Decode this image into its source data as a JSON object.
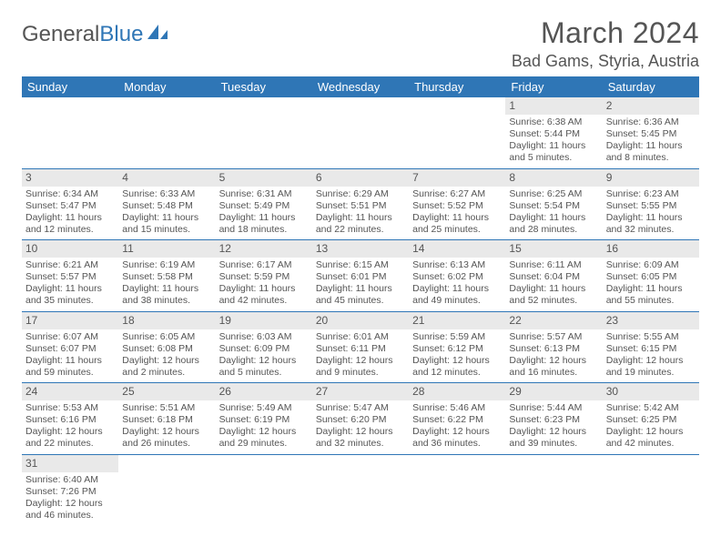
{
  "brand": {
    "word1": "General",
    "word2": "Blue"
  },
  "title": "March 2024",
  "location": "Bad Gams, Styria, Austria",
  "colors": {
    "header_bg": "#2f76b6",
    "header_text": "#ffffff",
    "daynum_bg": "#e9e9e9",
    "text": "#555555",
    "rule": "#2f76b6",
    "page_bg": "#ffffff"
  },
  "typography": {
    "title_fontsize": 32,
    "location_fontsize": 18,
    "dow_fontsize": 13,
    "daynum_fontsize": 12,
    "body_fontsize": 10.5
  },
  "days_of_week": [
    "Sunday",
    "Monday",
    "Tuesday",
    "Wednesday",
    "Thursday",
    "Friday",
    "Saturday"
  ],
  "weeks": [
    [
      null,
      null,
      null,
      null,
      null,
      {
        "n": "1",
        "sr": "Sunrise: 6:38 AM",
        "ss": "Sunset: 5:44 PM",
        "dl": "Daylight: 11 hours and 5 minutes."
      },
      {
        "n": "2",
        "sr": "Sunrise: 6:36 AM",
        "ss": "Sunset: 5:45 PM",
        "dl": "Daylight: 11 hours and 8 minutes."
      }
    ],
    [
      {
        "n": "3",
        "sr": "Sunrise: 6:34 AM",
        "ss": "Sunset: 5:47 PM",
        "dl": "Daylight: 11 hours and 12 minutes."
      },
      {
        "n": "4",
        "sr": "Sunrise: 6:33 AM",
        "ss": "Sunset: 5:48 PM",
        "dl": "Daylight: 11 hours and 15 minutes."
      },
      {
        "n": "5",
        "sr": "Sunrise: 6:31 AM",
        "ss": "Sunset: 5:49 PM",
        "dl": "Daylight: 11 hours and 18 minutes."
      },
      {
        "n": "6",
        "sr": "Sunrise: 6:29 AM",
        "ss": "Sunset: 5:51 PM",
        "dl": "Daylight: 11 hours and 22 minutes."
      },
      {
        "n": "7",
        "sr": "Sunrise: 6:27 AM",
        "ss": "Sunset: 5:52 PM",
        "dl": "Daylight: 11 hours and 25 minutes."
      },
      {
        "n": "8",
        "sr": "Sunrise: 6:25 AM",
        "ss": "Sunset: 5:54 PM",
        "dl": "Daylight: 11 hours and 28 minutes."
      },
      {
        "n": "9",
        "sr": "Sunrise: 6:23 AM",
        "ss": "Sunset: 5:55 PM",
        "dl": "Daylight: 11 hours and 32 minutes."
      }
    ],
    [
      {
        "n": "10",
        "sr": "Sunrise: 6:21 AM",
        "ss": "Sunset: 5:57 PM",
        "dl": "Daylight: 11 hours and 35 minutes."
      },
      {
        "n": "11",
        "sr": "Sunrise: 6:19 AM",
        "ss": "Sunset: 5:58 PM",
        "dl": "Daylight: 11 hours and 38 minutes."
      },
      {
        "n": "12",
        "sr": "Sunrise: 6:17 AM",
        "ss": "Sunset: 5:59 PM",
        "dl": "Daylight: 11 hours and 42 minutes."
      },
      {
        "n": "13",
        "sr": "Sunrise: 6:15 AM",
        "ss": "Sunset: 6:01 PM",
        "dl": "Daylight: 11 hours and 45 minutes."
      },
      {
        "n": "14",
        "sr": "Sunrise: 6:13 AM",
        "ss": "Sunset: 6:02 PM",
        "dl": "Daylight: 11 hours and 49 minutes."
      },
      {
        "n": "15",
        "sr": "Sunrise: 6:11 AM",
        "ss": "Sunset: 6:04 PM",
        "dl": "Daylight: 11 hours and 52 minutes."
      },
      {
        "n": "16",
        "sr": "Sunrise: 6:09 AM",
        "ss": "Sunset: 6:05 PM",
        "dl": "Daylight: 11 hours and 55 minutes."
      }
    ],
    [
      {
        "n": "17",
        "sr": "Sunrise: 6:07 AM",
        "ss": "Sunset: 6:07 PM",
        "dl": "Daylight: 11 hours and 59 minutes."
      },
      {
        "n": "18",
        "sr": "Sunrise: 6:05 AM",
        "ss": "Sunset: 6:08 PM",
        "dl": "Daylight: 12 hours and 2 minutes."
      },
      {
        "n": "19",
        "sr": "Sunrise: 6:03 AM",
        "ss": "Sunset: 6:09 PM",
        "dl": "Daylight: 12 hours and 5 minutes."
      },
      {
        "n": "20",
        "sr": "Sunrise: 6:01 AM",
        "ss": "Sunset: 6:11 PM",
        "dl": "Daylight: 12 hours and 9 minutes."
      },
      {
        "n": "21",
        "sr": "Sunrise: 5:59 AM",
        "ss": "Sunset: 6:12 PM",
        "dl": "Daylight: 12 hours and 12 minutes."
      },
      {
        "n": "22",
        "sr": "Sunrise: 5:57 AM",
        "ss": "Sunset: 6:13 PM",
        "dl": "Daylight: 12 hours and 16 minutes."
      },
      {
        "n": "23",
        "sr": "Sunrise: 5:55 AM",
        "ss": "Sunset: 6:15 PM",
        "dl": "Daylight: 12 hours and 19 minutes."
      }
    ],
    [
      {
        "n": "24",
        "sr": "Sunrise: 5:53 AM",
        "ss": "Sunset: 6:16 PM",
        "dl": "Daylight: 12 hours and 22 minutes."
      },
      {
        "n": "25",
        "sr": "Sunrise: 5:51 AM",
        "ss": "Sunset: 6:18 PM",
        "dl": "Daylight: 12 hours and 26 minutes."
      },
      {
        "n": "26",
        "sr": "Sunrise: 5:49 AM",
        "ss": "Sunset: 6:19 PM",
        "dl": "Daylight: 12 hours and 29 minutes."
      },
      {
        "n": "27",
        "sr": "Sunrise: 5:47 AM",
        "ss": "Sunset: 6:20 PM",
        "dl": "Daylight: 12 hours and 32 minutes."
      },
      {
        "n": "28",
        "sr": "Sunrise: 5:46 AM",
        "ss": "Sunset: 6:22 PM",
        "dl": "Daylight: 12 hours and 36 minutes."
      },
      {
        "n": "29",
        "sr": "Sunrise: 5:44 AM",
        "ss": "Sunset: 6:23 PM",
        "dl": "Daylight: 12 hours and 39 minutes."
      },
      {
        "n": "30",
        "sr": "Sunrise: 5:42 AM",
        "ss": "Sunset: 6:25 PM",
        "dl": "Daylight: 12 hours and 42 minutes."
      }
    ],
    [
      {
        "n": "31",
        "sr": "Sunrise: 6:40 AM",
        "ss": "Sunset: 7:26 PM",
        "dl": "Daylight: 12 hours and 46 minutes."
      },
      null,
      null,
      null,
      null,
      null,
      null
    ]
  ]
}
